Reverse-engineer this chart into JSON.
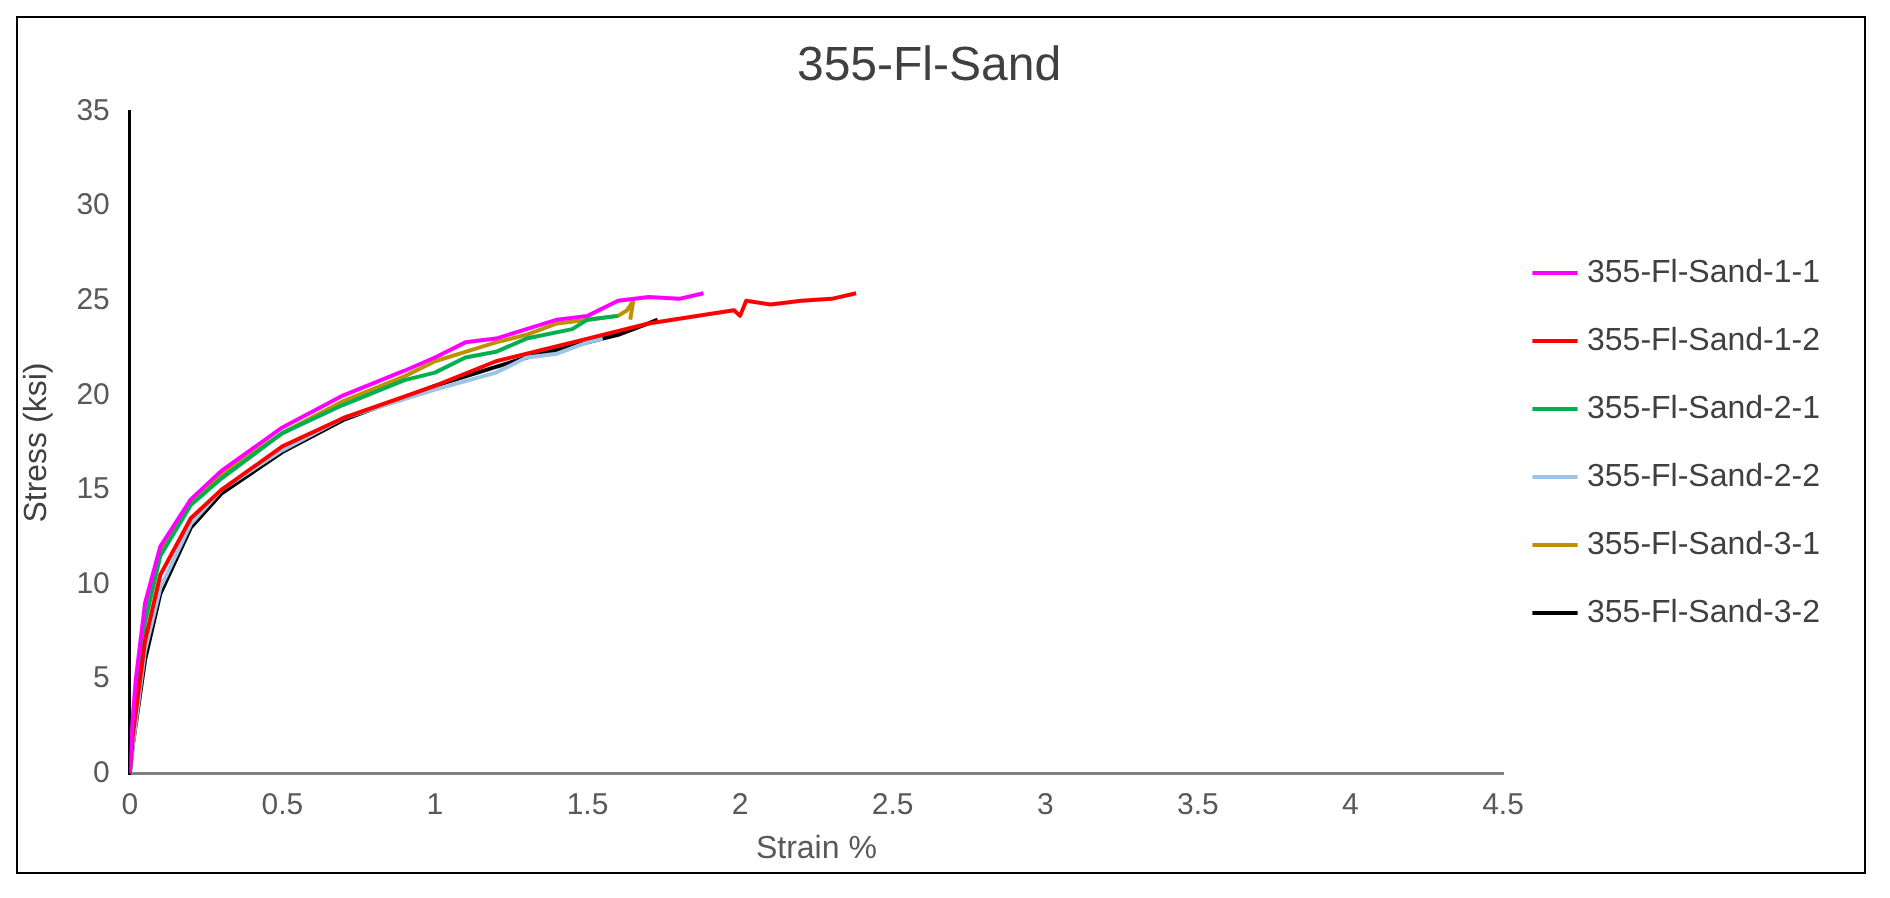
{
  "chart_data": {
    "type": "line",
    "title": "355-Fl-Sand",
    "xlabel": "Strain %",
    "ylabel": "Stress (ksi)",
    "xlim": [
      0,
      4.5
    ],
    "xticks": [
      0,
      0.5,
      1,
      1.5,
      2,
      2.5,
      3,
      3.5,
      4,
      4.5
    ],
    "ylim": [
      0,
      35
    ],
    "yticks": [
      0,
      5,
      10,
      15,
      20,
      25,
      30,
      35
    ],
    "grid": false,
    "legend": "right",
    "marker": "none",
    "line_style": "solid",
    "series": [
      {
        "name": "355-Fl-Sand-1-1",
        "color": "#ff00ff",
        "x": [
          0,
          0.01,
          0.02,
          0.05,
          0.1,
          0.2,
          0.3,
          0.5,
          0.7,
          0.9,
          1.0,
          1.1,
          1.2,
          1.3,
          1.4,
          1.5,
          1.6,
          1.7,
          1.8,
          1.88
        ],
        "values": [
          0,
          3,
          5,
          9,
          12,
          14.5,
          16,
          18.3,
          20,
          21.3,
          22,
          22.8,
          23,
          23.5,
          24,
          24.2,
          25,
          25.2,
          25.1,
          25.4
        ]
      },
      {
        "name": "355-Fl-Sand-1-2",
        "color": "#ff0000",
        "x": [
          0,
          0.01,
          0.05,
          0.1,
          0.2,
          0.3,
          0.5,
          0.7,
          1.0,
          1.2,
          1.5,
          1.7,
          1.9,
          1.98,
          2.0,
          2.02,
          2.1,
          2.2,
          2.3,
          2.38
        ],
        "values": [
          0,
          2,
          7,
          10.5,
          13.5,
          15,
          17.3,
          18.8,
          20.5,
          21.8,
          23,
          23.8,
          24.3,
          24.5,
          24.2,
          25,
          24.8,
          25,
          25.1,
          25.4
        ]
      },
      {
        "name": "355-Fl-Sand-2-1",
        "color": "#00b050",
        "x": [
          0,
          0.01,
          0.05,
          0.1,
          0.2,
          0.3,
          0.5,
          0.7,
          0.9,
          1.0,
          1.1,
          1.2,
          1.3,
          1.45,
          1.5,
          1.6
        ],
        "values": [
          0,
          2.5,
          8,
          11.5,
          14.2,
          15.6,
          18,
          19.5,
          20.8,
          21.2,
          22,
          22.3,
          23,
          23.5,
          24,
          24.2
        ]
      },
      {
        "name": "355-Fl-Sand-2-2",
        "color": "#9dc3e6",
        "x": [
          0,
          0.01,
          0.05,
          0.1,
          0.2,
          0.3,
          0.5,
          0.7,
          1.0,
          1.2,
          1.3,
          1.4,
          1.5,
          1.55
        ],
        "values": [
          0,
          1.5,
          6.5,
          9.8,
          13.2,
          15,
          17.1,
          18.8,
          20.3,
          21.2,
          22,
          22.2,
          22.8,
          23
        ]
      },
      {
        "name": "355-Fl-Sand-3-1",
        "color": "#bf9000",
        "x": [
          0.05,
          0.1,
          0.2,
          0.3,
          0.5,
          0.7,
          0.9,
          1.0,
          1.1,
          1.2,
          1.3,
          1.4,
          1.5,
          1.6,
          1.63,
          1.65,
          1.64
        ],
        "values": [
          8.8,
          11.8,
          14.3,
          15.8,
          18,
          19.7,
          21,
          21.8,
          22.3,
          22.8,
          23.2,
          23.8,
          24,
          24.2,
          24.5,
          25,
          24
        ]
      },
      {
        "name": "355-Fl-Sand-3-2",
        "color": "#000000",
        "x": [
          0,
          0.01,
          0.05,
          0.1,
          0.2,
          0.3,
          0.5,
          0.7,
          1.0,
          1.2,
          1.3,
          1.5,
          1.6,
          1.7,
          1.73
        ],
        "values": [
          0,
          1.5,
          6,
          9.5,
          13,
          14.8,
          17,
          18.7,
          20.5,
          21.5,
          22,
          22.8,
          23.2,
          23.8,
          24
        ]
      }
    ]
  }
}
